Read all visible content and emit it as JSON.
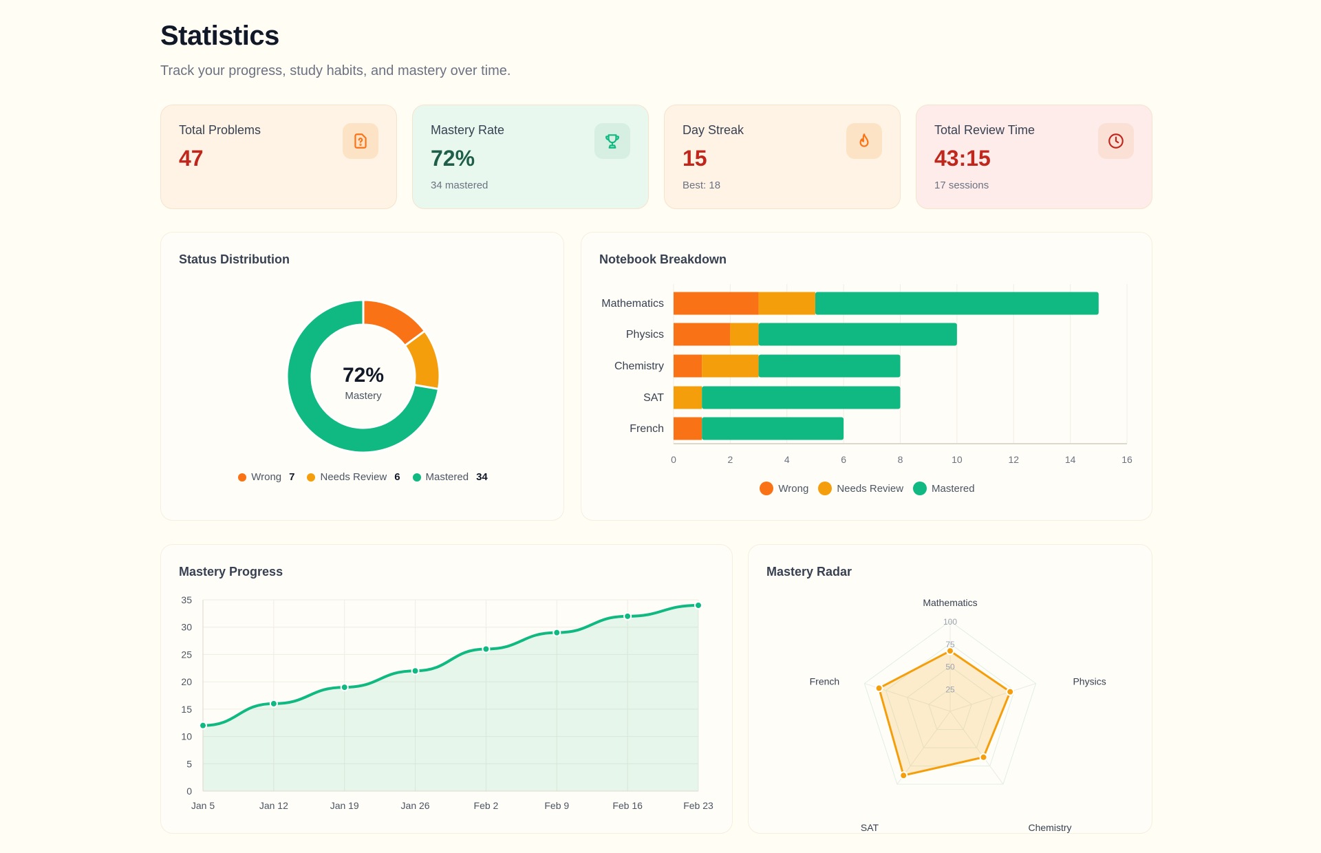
{
  "header": {
    "title": "Statistics",
    "subtitle": "Track your progress, study habits, and mastery over time."
  },
  "cards": [
    {
      "label": "Total Problems",
      "value": "47",
      "sub": "",
      "icon": "question-file-icon",
      "bg": "#fff3e6",
      "icon_bg": "#fde3c6",
      "icon_color": "#f97316",
      "value_color": "#c0271c"
    },
    {
      "label": "Mastery Rate",
      "value": "72%",
      "sub": "34 mastered",
      "icon": "trophy-icon",
      "bg": "#e8f8ef",
      "icon_bg": "#d6efe2",
      "icon_color": "#10b981",
      "value_color": "#1f5f4a"
    },
    {
      "label": "Day Streak",
      "value": "15",
      "sub": "Best: 18",
      "icon": "flame-icon",
      "bg": "#fff3e6",
      "icon_bg": "#fde3c6",
      "icon_color": "#f97316",
      "value_color": "#c0271c"
    },
    {
      "label": "Total Review Time",
      "value": "43:15",
      "sub": "17 sessions",
      "icon": "clock-icon",
      "bg": "#fdecea",
      "icon_bg": "#fbe0d6",
      "icon_color": "#c0271c",
      "value_color": "#c0271c"
    }
  ],
  "colors": {
    "wrong": "#f97316",
    "needs_review": "#f59e0b",
    "mastered": "#10b981",
    "radar": "#f59e0b"
  },
  "status": {
    "title": "Status Distribution",
    "center_value": "72%",
    "center_label": "Mastery",
    "legend": [
      {
        "label": "Wrong",
        "count": "7"
      },
      {
        "label": "Needs Review",
        "count": "6"
      },
      {
        "label": "Mastered",
        "count": "34"
      }
    ]
  },
  "notebook": {
    "title": "Notebook Breakdown",
    "legend": [
      "Wrong",
      "Needs Review",
      "Mastered"
    ]
  },
  "progress": {
    "title": "Mastery Progress"
  },
  "radar": {
    "title": "Mastery Radar"
  },
  "chart_data": [
    {
      "type": "pie",
      "title": "Status Distribution",
      "categories": [
        "Wrong",
        "Needs Review",
        "Mastered"
      ],
      "values": [
        7,
        6,
        34
      ],
      "donut": true,
      "legend": "bottom"
    },
    {
      "type": "bar",
      "orientation": "horizontal",
      "stacked": true,
      "title": "Notebook Breakdown",
      "categories": [
        "Mathematics",
        "Physics",
        "Chemistry",
        "SAT",
        "French"
      ],
      "series": [
        {
          "name": "Wrong",
          "values": [
            3,
            2,
            1,
            0,
            1
          ]
        },
        {
          "name": "Needs Review",
          "values": [
            2,
            1,
            2,
            1,
            0
          ]
        },
        {
          "name": "Mastered",
          "values": [
            10,
            7,
            5,
            7,
            5
          ]
        }
      ],
      "xlim": [
        0,
        16
      ],
      "xticks": [
        "0",
        "2",
        "4",
        "6",
        "8",
        "10",
        "12",
        "14",
        "16"
      ],
      "grid": true,
      "legend": "bottom"
    },
    {
      "type": "area",
      "title": "Mastery Progress",
      "x": [
        "Jan 5",
        "Jan 12",
        "Jan 19",
        "Jan 26",
        "Feb 2",
        "Feb 9",
        "Feb 16",
        "Feb 23"
      ],
      "values": [
        12,
        16,
        19,
        22,
        26,
        29,
        32,
        34
      ],
      "ylim": [
        0,
        35
      ],
      "yticks": [
        "0",
        "5",
        "10",
        "15",
        "20",
        "25",
        "30",
        "35"
      ],
      "grid": true
    },
    {
      "type": "radar",
      "title": "Mastery Radar",
      "categories": [
        "Mathematics",
        "Physics",
        "Chemistry",
        "SAT",
        "French"
      ],
      "values": [
        67,
        70,
        63,
        88,
        83
      ],
      "rlim": [
        0,
        100
      ],
      "rticks": [
        "25",
        "50",
        "75",
        "100"
      ]
    }
  ]
}
